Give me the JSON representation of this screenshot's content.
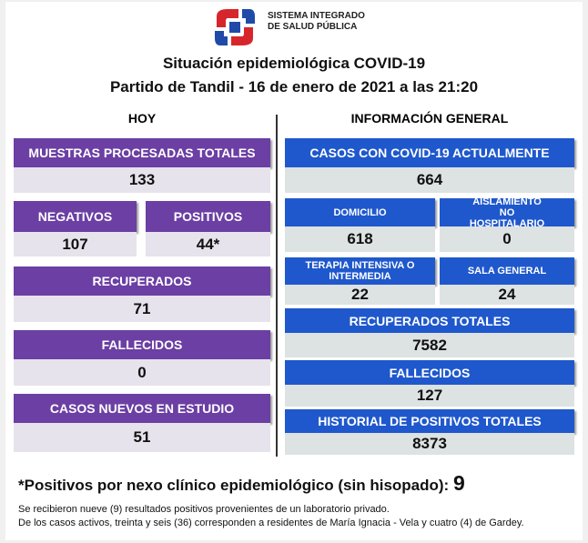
{
  "header": {
    "org_line1": "SISTEMA INTEGRADO",
    "org_line2": "DE SALUD PÚBLICA",
    "title": "Situación epidemiológica COVID-19",
    "subtitle": "Partido de Tandil - 16 de enero de 2021 a las 21:20"
  },
  "hoy": {
    "heading": "HOY",
    "muestras": {
      "label": "MUESTRAS PROCESADAS TOTALES",
      "value": "133"
    },
    "negativos": {
      "label": "NEGATIVOS",
      "value": "107"
    },
    "positivos": {
      "label": "POSITIVOS",
      "value": "44*"
    },
    "recuperados": {
      "label": "RECUPERADOS",
      "value": "71"
    },
    "fallecidos": {
      "label": "FALLECIDOS",
      "value": "0"
    },
    "casos_nuevos": {
      "label": "CASOS NUEVOS EN ESTUDIO",
      "value": "51"
    }
  },
  "general": {
    "heading": "INFORMACIÓN GENERAL",
    "casos_actuales": {
      "label": "CASOS CON COVID-19 ACTUALMENTE",
      "value": "664"
    },
    "domicilio": {
      "label": "DOMICILIO",
      "value": "618"
    },
    "aislamiento": {
      "label": "AISLAMIENTO NO HOSPITALARIO",
      "value": "0"
    },
    "terapia": {
      "label": "TERAPIA INTENSIVA O INTERMEDIA",
      "value": "22"
    },
    "sala_general": {
      "label": "SALA GENERAL",
      "value": "24"
    },
    "recuperados_totales": {
      "label": "RECUPERADOS TOTALES",
      "value": "7582"
    },
    "fallecidos": {
      "label": "FALLECIDOS",
      "value": "127"
    },
    "historial": {
      "label": "HISTORIAL DE POSITIVOS TOTALES",
      "value": "8373"
    }
  },
  "footer": {
    "nexo_label": "*Positivos por nexo clínico epidemiológico (sin hisopado):",
    "nexo_value": "9",
    "notes": [
      "Se recibieron nueve (9) resultados positivos provenientes de un laboratorio privado.",
      "De los casos activos, treinta y seis (36) corresponden a residentes de María Ignacia - Vela y cuatro (4) de Gardey."
    ]
  }
}
